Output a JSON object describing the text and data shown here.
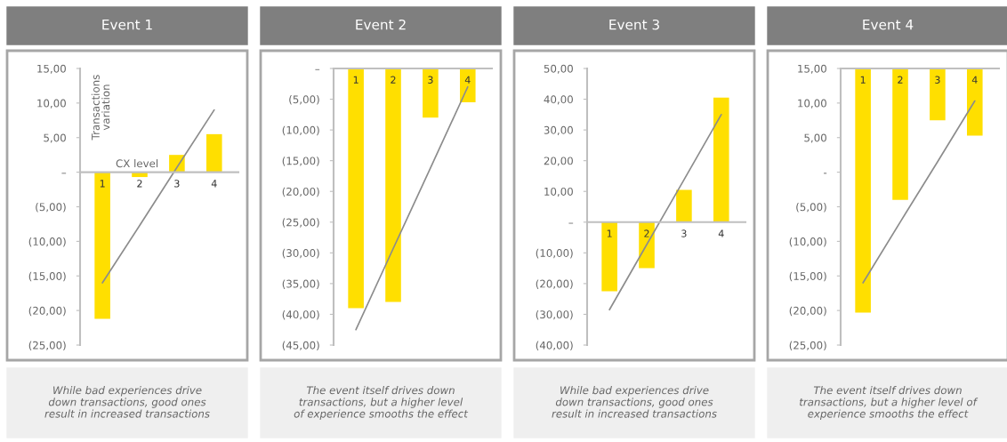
{
  "chart_data": [
    {
      "type": "bar",
      "title": "Event 1",
      "categories": [
        "1",
        "2",
        "3",
        "4"
      ],
      "ylabel": "Transactions\nvariation",
      "xlabel": "CX level",
      "series": [
        {
          "color": "#ffdf00",
          "values": [
            -21.2,
            -0.7,
            2.5,
            5.5
          ]
        },
        {
          "type": "line",
          "color": "#8c8c8c",
          "values": [
            -16,
            -7.7,
            0.7,
            9
          ]
        }
      ],
      "ylim": [
        -25,
        15
      ],
      "yticks": [
        {
          "value": 15,
          "label": "15,00"
        },
        {
          "value": 10,
          "label": "10,00"
        },
        {
          "value": 5,
          "label": "5,00"
        },
        {
          "value": 0,
          "label": "–"
        },
        {
          "value": -5,
          "label": "(5,00)"
        },
        {
          "value": -10,
          "label": "(10,00)"
        },
        {
          "value": -15,
          "label": "(15,00)"
        },
        {
          "value": -20,
          "label": "(20,00)"
        },
        {
          "value": -25,
          "label": "(25,00)"
        }
      ],
      "annotations": [
        "While bad experiences drive\ndown transactions, good ones\nresult in increased transactions"
      ]
    },
    {
      "type": "bar",
      "title": "Event 2",
      "categories": [
        "1",
        "2",
        "3",
        "4"
      ],
      "series": [
        {
          "color": "#ffdf00",
          "values": [
            -39,
            -38,
            -8,
            -5.5
          ]
        },
        {
          "type": "line",
          "color": "#8c8c8c",
          "values": [
            -42.5,
            -29.3,
            -16.2,
            -3
          ]
        }
      ],
      "ylim": [
        -45,
        0
      ],
      "yticks": [
        {
          "value": 0,
          "label": "–"
        },
        {
          "value": -5,
          "label": "(5,00)"
        },
        {
          "value": -10,
          "label": "(10,00)"
        },
        {
          "value": -15,
          "label": "(15,00)"
        },
        {
          "value": -20,
          "label": "(20,00)"
        },
        {
          "value": -25,
          "label": "(25,00)"
        },
        {
          "value": -30,
          "label": "(30,00)"
        },
        {
          "value": -35,
          "label": "(35,00)"
        },
        {
          "value": -40,
          "label": "(40,00)"
        },
        {
          "value": -45,
          "label": "(45,00)"
        }
      ],
      "annotations": [
        "The event itself drives down\ntransactions, but a higher level\nof experience smooths the effect"
      ]
    },
    {
      "type": "bar",
      "title": "Event 3",
      "categories": [
        "1",
        "2",
        "3",
        "4"
      ],
      "series": [
        {
          "color": "#ffdf00",
          "values": [
            -22.5,
            -15,
            10.5,
            40.5
          ]
        },
        {
          "type": "line",
          "color": "#8c8c8c",
          "values": [
            -28.5,
            -7.3,
            13.8,
            35
          ]
        }
      ],
      "ylim": [
        -40,
        50
      ],
      "yticks": [
        {
          "value": 50,
          "label": "50,00"
        },
        {
          "value": 40,
          "label": "40,00"
        },
        {
          "value": 30,
          "label": "30,00"
        },
        {
          "value": 20,
          "label": "20,00"
        },
        {
          "value": 10,
          "label": "10,00"
        },
        {
          "value": 0,
          "label": "–"
        },
        {
          "value": -10,
          "label": "(10,00)"
        },
        {
          "value": -20,
          "label": "(20,00)"
        },
        {
          "value": -30,
          "label": "(30,00)"
        },
        {
          "value": -40,
          "label": "(40,00)"
        }
      ],
      "annotations": [
        "While bad experiences drive\ndown transactions, good ones\nresult in increased transactions"
      ]
    },
    {
      "type": "bar",
      "title": "Event 4",
      "categories": [
        "1",
        "2",
        "3",
        "4"
      ],
      "series": [
        {
          "color": "#ffdf00",
          "base": [
            15,
            15,
            15,
            15
          ],
          "values": [
            -35.3,
            -19,
            -7.5,
            -9.7
          ]
        },
        {
          "type": "line",
          "color": "#8c8c8c",
          "values": [
            -16,
            -7.2,
            1.5,
            10.3
          ]
        }
      ],
      "ylim": [
        -25,
        15
      ],
      "yticks": [
        {
          "value": 15,
          "label": "15,00"
        },
        {
          "value": 10,
          "label": "10,00"
        },
        {
          "value": 5,
          "label": "5,00"
        },
        {
          "value": 0,
          "label": "-"
        },
        {
          "value": -5,
          "label": "(5,00)"
        },
        {
          "value": -10,
          "label": "(10,00)"
        },
        {
          "value": -15,
          "label": "(15,00)"
        },
        {
          "value": -20,
          "label": "(20,00)"
        },
        {
          "value": -25,
          "label": "(25,00)"
        }
      ],
      "annotations": [
        "The event itself drives down\ntransactions, but a higher level of\nexperience smooths the effect"
      ]
    }
  ]
}
